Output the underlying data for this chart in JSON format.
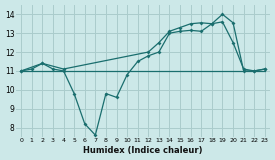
{
  "xlabel": "Humidex (Indice chaleur)",
  "bg_color": "#cce8e8",
  "grid_color": "#aacccc",
  "line_color": "#1a6e6e",
  "xlim": [
    -0.5,
    23.5
  ],
  "ylim": [
    7.5,
    14.5
  ],
  "yticks": [
    8,
    9,
    10,
    11,
    12,
    13,
    14
  ],
  "xticks": [
    0,
    1,
    2,
    3,
    4,
    5,
    6,
    7,
    8,
    9,
    10,
    11,
    12,
    13,
    14,
    15,
    16,
    17,
    18,
    19,
    20,
    21,
    22,
    23
  ],
  "line1_x": [
    0,
    1,
    2,
    3,
    4,
    5,
    6,
    7,
    8,
    9,
    10,
    11,
    12,
    13,
    14,
    15,
    16,
    17,
    18,
    19,
    20,
    21,
    22,
    23
  ],
  "line1_y": [
    11.0,
    11.1,
    11.4,
    11.1,
    11.0,
    9.8,
    8.2,
    7.6,
    9.8,
    9.6,
    10.8,
    11.5,
    11.8,
    12.0,
    13.0,
    13.1,
    13.15,
    13.1,
    13.5,
    13.6,
    12.5,
    11.1,
    11.0,
    11.1
  ],
  "line2_x": [
    0,
    2,
    4,
    12,
    13,
    14,
    15,
    16,
    17,
    18,
    19,
    20,
    21,
    22,
    23
  ],
  "line2_y": [
    11.0,
    11.4,
    11.1,
    12.0,
    12.5,
    13.1,
    13.3,
    13.5,
    13.55,
    13.5,
    14.0,
    13.55,
    11.0,
    11.0,
    11.1
  ],
  "line3_x": [
    0,
    23
  ],
  "line3_y": [
    11.0,
    11.0
  ]
}
